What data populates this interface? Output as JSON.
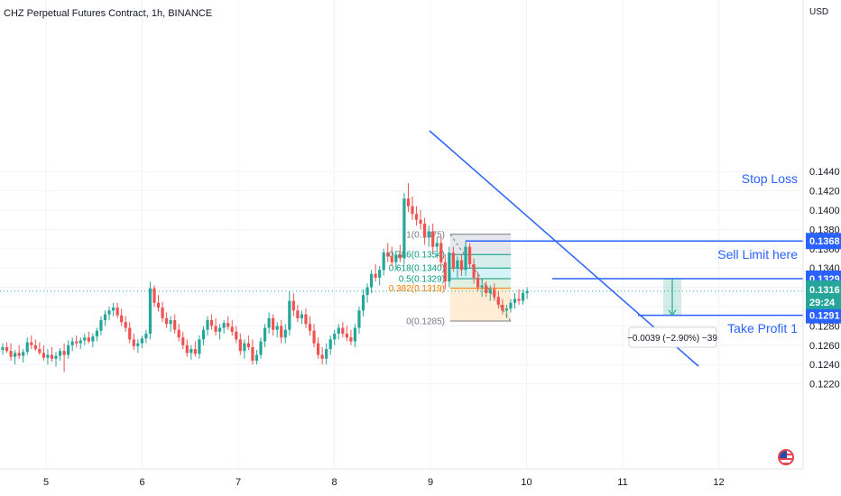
{
  "header": {
    "title": "CHZ Perpetual Futures Contract, 1h, BINANCE",
    "currency": "USD"
  },
  "colors": {
    "up": "#26a69a",
    "down": "#ef5350",
    "drawing": "#2962ff",
    "target": "#089981"
  },
  "chart_data": {
    "type": "candlestick",
    "x_tick_labels": [
      "5",
      "6",
      "7",
      "8",
      "9",
      "10",
      "11",
      "12"
    ],
    "y_tick_labels": [
      "0.1440",
      "0.1420",
      "0.1400",
      "0.1380",
      "0.1360",
      "0.1340",
      "0.1320",
      "0.1300",
      "0.1280",
      "0.1260",
      "0.1240",
      "0.1220"
    ],
    "ylim": [
      0.1212,
      0.144
    ],
    "current_price": "0.1316",
    "countdown": "29:24",
    "candles": [
      {
        "o": 0.1255,
        "h": 0.1262,
        "l": 0.125,
        "c": 0.1258
      },
      {
        "o": 0.1258,
        "h": 0.1263,
        "l": 0.1252,
        "c": 0.1254
      },
      {
        "o": 0.1254,
        "h": 0.1262,
        "l": 0.1244,
        "c": 0.1248
      },
      {
        "o": 0.1248,
        "h": 0.1255,
        "l": 0.124,
        "c": 0.1252
      },
      {
        "o": 0.1252,
        "h": 0.126,
        "l": 0.1246,
        "c": 0.1249
      },
      {
        "o": 0.1249,
        "h": 0.1256,
        "l": 0.1242,
        "c": 0.1253
      },
      {
        "o": 0.1253,
        "h": 0.1268,
        "l": 0.125,
        "c": 0.1263
      },
      {
        "o": 0.1263,
        "h": 0.127,
        "l": 0.1256,
        "c": 0.126
      },
      {
        "o": 0.126,
        "h": 0.1266,
        "l": 0.1254,
        "c": 0.1256
      },
      {
        "o": 0.1256,
        "h": 0.1263,
        "l": 0.125,
        "c": 0.1252
      },
      {
        "o": 0.1252,
        "h": 0.126,
        "l": 0.1244,
        "c": 0.1247
      },
      {
        "o": 0.1247,
        "h": 0.1256,
        "l": 0.124,
        "c": 0.125
      },
      {
        "o": 0.125,
        "h": 0.1258,
        "l": 0.1243,
        "c": 0.1246
      },
      {
        "o": 0.1246,
        "h": 0.1253,
        "l": 0.1238,
        "c": 0.1249
      },
      {
        "o": 0.1249,
        "h": 0.1257,
        "l": 0.1244,
        "c": 0.1254
      },
      {
        "o": 0.1254,
        "h": 0.1262,
        "l": 0.1232,
        "c": 0.125
      },
      {
        "o": 0.125,
        "h": 0.1265,
        "l": 0.1246,
        "c": 0.126
      },
      {
        "o": 0.126,
        "h": 0.1268,
        "l": 0.1254,
        "c": 0.1264
      },
      {
        "o": 0.1264,
        "h": 0.127,
        "l": 0.1258,
        "c": 0.1262
      },
      {
        "o": 0.1262,
        "h": 0.1268,
        "l": 0.1256,
        "c": 0.1265
      },
      {
        "o": 0.1265,
        "h": 0.1272,
        "l": 0.126,
        "c": 0.1268
      },
      {
        "o": 0.1268,
        "h": 0.1274,
        "l": 0.1262,
        "c": 0.1264
      },
      {
        "o": 0.1264,
        "h": 0.1272,
        "l": 0.1258,
        "c": 0.1269
      },
      {
        "o": 0.1269,
        "h": 0.1278,
        "l": 0.1264,
        "c": 0.1275
      },
      {
        "o": 0.1275,
        "h": 0.129,
        "l": 0.127,
        "c": 0.1286
      },
      {
        "o": 0.1286,
        "h": 0.1296,
        "l": 0.128,
        "c": 0.1292
      },
      {
        "o": 0.1292,
        "h": 0.13,
        "l": 0.1286,
        "c": 0.1296
      },
      {
        "o": 0.1296,
        "h": 0.1304,
        "l": 0.129,
        "c": 0.1299
      },
      {
        "o": 0.1299,
        "h": 0.1304,
        "l": 0.1288,
        "c": 0.1291
      },
      {
        "o": 0.1291,
        "h": 0.1298,
        "l": 0.128,
        "c": 0.1284
      },
      {
        "o": 0.1284,
        "h": 0.129,
        "l": 0.1274,
        "c": 0.1278
      },
      {
        "o": 0.1278,
        "h": 0.1284,
        "l": 0.1262,
        "c": 0.1266
      },
      {
        "o": 0.1266,
        "h": 0.1272,
        "l": 0.1255,
        "c": 0.1259
      },
      {
        "o": 0.1259,
        "h": 0.1266,
        "l": 0.1252,
        "c": 0.1262
      },
      {
        "o": 0.1262,
        "h": 0.127,
        "l": 0.1257,
        "c": 0.1267
      },
      {
        "o": 0.1267,
        "h": 0.1276,
        "l": 0.1262,
        "c": 0.1272
      },
      {
        "o": 0.1272,
        "h": 0.1326,
        "l": 0.1266,
        "c": 0.1319
      },
      {
        "o": 0.1319,
        "h": 0.1322,
        "l": 0.13,
        "c": 0.1304
      },
      {
        "o": 0.1304,
        "h": 0.1312,
        "l": 0.1295,
        "c": 0.1299
      },
      {
        "o": 0.1299,
        "h": 0.1305,
        "l": 0.1284,
        "c": 0.1288
      },
      {
        "o": 0.1288,
        "h": 0.1294,
        "l": 0.1278,
        "c": 0.1282
      },
      {
        "o": 0.1282,
        "h": 0.129,
        "l": 0.1274,
        "c": 0.1286
      },
      {
        "o": 0.1286,
        "h": 0.1292,
        "l": 0.1272,
        "c": 0.1276
      },
      {
        "o": 0.1276,
        "h": 0.1282,
        "l": 0.1264,
        "c": 0.1268
      },
      {
        "o": 0.1268,
        "h": 0.1274,
        "l": 0.1256,
        "c": 0.126
      },
      {
        "o": 0.126,
        "h": 0.1266,
        "l": 0.1248,
        "c": 0.1252
      },
      {
        "o": 0.1252,
        "h": 0.126,
        "l": 0.1245,
        "c": 0.1256
      },
      {
        "o": 0.1256,
        "h": 0.1264,
        "l": 0.1248,
        "c": 0.1251
      },
      {
        "o": 0.1251,
        "h": 0.127,
        "l": 0.1246,
        "c": 0.1266
      },
      {
        "o": 0.1266,
        "h": 0.128,
        "l": 0.126,
        "c": 0.1276
      },
      {
        "o": 0.1276,
        "h": 0.129,
        "l": 0.127,
        "c": 0.1286
      },
      {
        "o": 0.1286,
        "h": 0.1292,
        "l": 0.1276,
        "c": 0.128
      },
      {
        "o": 0.128,
        "h": 0.1288,
        "l": 0.127,
        "c": 0.1274
      },
      {
        "o": 0.1274,
        "h": 0.1282,
        "l": 0.1266,
        "c": 0.1278
      },
      {
        "o": 0.1278,
        "h": 0.1286,
        "l": 0.1272,
        "c": 0.1283
      },
      {
        "o": 0.1283,
        "h": 0.129,
        "l": 0.1276,
        "c": 0.1279
      },
      {
        "o": 0.1279,
        "h": 0.1286,
        "l": 0.127,
        "c": 0.1274
      },
      {
        "o": 0.1274,
        "h": 0.128,
        "l": 0.1262,
        "c": 0.1266
      },
      {
        "o": 0.1266,
        "h": 0.1272,
        "l": 0.125,
        "c": 0.1254
      },
      {
        "o": 0.1254,
        "h": 0.1266,
        "l": 0.1246,
        "c": 0.1262
      },
      {
        "o": 0.1262,
        "h": 0.127,
        "l": 0.1255,
        "c": 0.1258
      },
      {
        "o": 0.1258,
        "h": 0.1266,
        "l": 0.124,
        "c": 0.1244
      },
      {
        "o": 0.1244,
        "h": 0.1255,
        "l": 0.124,
        "c": 0.125
      },
      {
        "o": 0.125,
        "h": 0.1268,
        "l": 0.1246,
        "c": 0.1264
      },
      {
        "o": 0.1264,
        "h": 0.1282,
        "l": 0.1258,
        "c": 0.1278
      },
      {
        "o": 0.1278,
        "h": 0.1294,
        "l": 0.1272,
        "c": 0.1288
      },
      {
        "o": 0.1288,
        "h": 0.1292,
        "l": 0.127,
        "c": 0.1276
      },
      {
        "o": 0.1276,
        "h": 0.1284,
        "l": 0.1268,
        "c": 0.128
      },
      {
        "o": 0.128,
        "h": 0.1286,
        "l": 0.1262,
        "c": 0.1268
      },
      {
        "o": 0.1268,
        "h": 0.1282,
        "l": 0.1262,
        "c": 0.1276
      },
      {
        "o": 0.1276,
        "h": 0.1316,
        "l": 0.127,
        "c": 0.1306
      },
      {
        "o": 0.1306,
        "h": 0.1314,
        "l": 0.129,
        "c": 0.1296
      },
      {
        "o": 0.1296,
        "h": 0.1302,
        "l": 0.1284,
        "c": 0.1288
      },
      {
        "o": 0.1288,
        "h": 0.1296,
        "l": 0.1282,
        "c": 0.1292
      },
      {
        "o": 0.1292,
        "h": 0.1298,
        "l": 0.1278,
        "c": 0.1282
      },
      {
        "o": 0.1282,
        "h": 0.129,
        "l": 0.127,
        "c": 0.1275
      },
      {
        "o": 0.1275,
        "h": 0.1282,
        "l": 0.1258,
        "c": 0.1262
      },
      {
        "o": 0.1262,
        "h": 0.1268,
        "l": 0.1246,
        "c": 0.125
      },
      {
        "o": 0.125,
        "h": 0.1258,
        "l": 0.124,
        "c": 0.1246
      },
      {
        "o": 0.1246,
        "h": 0.1262,
        "l": 0.124,
        "c": 0.1256
      },
      {
        "o": 0.1256,
        "h": 0.127,
        "l": 0.125,
        "c": 0.1266
      },
      {
        "o": 0.1266,
        "h": 0.1276,
        "l": 0.126,
        "c": 0.1272
      },
      {
        "o": 0.1272,
        "h": 0.1282,
        "l": 0.1266,
        "c": 0.1278
      },
      {
        "o": 0.1278,
        "h": 0.1284,
        "l": 0.1268,
        "c": 0.1272
      },
      {
        "o": 0.1272,
        "h": 0.128,
        "l": 0.1264,
        "c": 0.1268
      },
      {
        "o": 0.1268,
        "h": 0.1276,
        "l": 0.126,
        "c": 0.1264
      },
      {
        "o": 0.1264,
        "h": 0.1282,
        "l": 0.1258,
        "c": 0.1278
      },
      {
        "o": 0.1278,
        "h": 0.13,
        "l": 0.1272,
        "c": 0.1296
      },
      {
        "o": 0.1296,
        "h": 0.1318,
        "l": 0.129,
        "c": 0.1312
      },
      {
        "o": 0.1312,
        "h": 0.1324,
        "l": 0.1304,
        "c": 0.132
      },
      {
        "o": 0.132,
        "h": 0.1338,
        "l": 0.1314,
        "c": 0.1334
      },
      {
        "o": 0.1334,
        "h": 0.1344,
        "l": 0.1326,
        "c": 0.133
      },
      {
        "o": 0.133,
        "h": 0.1342,
        "l": 0.1322,
        "c": 0.1338
      },
      {
        "o": 0.1338,
        "h": 0.136,
        "l": 0.1332,
        "c": 0.1356
      },
      {
        "o": 0.1356,
        "h": 0.1366,
        "l": 0.1346,
        "c": 0.1352
      },
      {
        "o": 0.1352,
        "h": 0.1362,
        "l": 0.1342,
        "c": 0.1346
      },
      {
        "o": 0.1346,
        "h": 0.1358,
        "l": 0.1338,
        "c": 0.1354
      },
      {
        "o": 0.1354,
        "h": 0.1364,
        "l": 0.1346,
        "c": 0.135
      },
      {
        "o": 0.135,
        "h": 0.1418,
        "l": 0.1344,
        "c": 0.1412
      },
      {
        "o": 0.1412,
        "h": 0.1428,
        "l": 0.1398,
        "c": 0.1404
      },
      {
        "o": 0.1404,
        "h": 0.1414,
        "l": 0.139,
        "c": 0.1396
      },
      {
        "o": 0.1396,
        "h": 0.1404,
        "l": 0.1384,
        "c": 0.139
      },
      {
        "o": 0.139,
        "h": 0.14,
        "l": 0.138,
        "c": 0.1386
      },
      {
        "o": 0.1386,
        "h": 0.1392,
        "l": 0.1364,
        "c": 0.1372
      },
      {
        "o": 0.1372,
        "h": 0.1384,
        "l": 0.1362,
        "c": 0.1378
      },
      {
        "o": 0.1378,
        "h": 0.1386,
        "l": 0.1356,
        "c": 0.1362
      },
      {
        "o": 0.1362,
        "h": 0.1372,
        "l": 0.135,
        "c": 0.1366
      },
      {
        "o": 0.1366,
        "h": 0.1372,
        "l": 0.134,
        "c": 0.1346
      },
      {
        "o": 0.1346,
        "h": 0.1354,
        "l": 0.1318,
        "c": 0.1326
      },
      {
        "o": 0.1326,
        "h": 0.1362,
        "l": 0.132,
        "c": 0.1356
      },
      {
        "o": 0.1356,
        "h": 0.1362,
        "l": 0.1336,
        "c": 0.134
      },
      {
        "o": 0.134,
        "h": 0.1352,
        "l": 0.133,
        "c": 0.1348
      },
      {
        "o": 0.1348,
        "h": 0.1354,
        "l": 0.1332,
        "c": 0.1338
      },
      {
        "o": 0.1338,
        "h": 0.1368,
        "l": 0.1332,
        "c": 0.1362
      },
      {
        "o": 0.1362,
        "h": 0.1366,
        "l": 0.134,
        "c": 0.1344
      },
      {
        "o": 0.1344,
        "h": 0.135,
        "l": 0.1324,
        "c": 0.133
      },
      {
        "o": 0.133,
        "h": 0.1336,
        "l": 0.1316,
        "c": 0.132
      },
      {
        "o": 0.132,
        "h": 0.1328,
        "l": 0.131,
        "c": 0.1322
      },
      {
        "o": 0.1322,
        "h": 0.1326,
        "l": 0.131,
        "c": 0.1314
      },
      {
        "o": 0.1314,
        "h": 0.1322,
        "l": 0.1306,
        "c": 0.1318
      },
      {
        "o": 0.1318,
        "h": 0.1324,
        "l": 0.1306,
        "c": 0.131
      },
      {
        "o": 0.131,
        "h": 0.1316,
        "l": 0.1298,
        "c": 0.1302
      },
      {
        "o": 0.1302,
        "h": 0.1308,
        "l": 0.1292,
        "c": 0.1296
      },
      {
        "o": 0.1296,
        "h": 0.1302,
        "l": 0.1288,
        "c": 0.1298
      },
      {
        "o": 0.1298,
        "h": 0.1308,
        "l": 0.1294,
        "c": 0.1304
      },
      {
        "o": 0.1304,
        "h": 0.1314,
        "l": 0.1298,
        "c": 0.1308
      },
      {
        "o": 0.1308,
        "h": 0.1318,
        "l": 0.1302,
        "c": 0.1306
      },
      {
        "o": 0.1306,
        "h": 0.1318,
        "l": 0.1302,
        "c": 0.1314
      },
      {
        "o": 0.1314,
        "h": 0.132,
        "l": 0.1308,
        "c": 0.1316
      }
    ],
    "fibonacci": [
      {
        "label": "1(0.1375)",
        "value": 0.1375,
        "color": "#787b86"
      },
      {
        "label": "0.786(0.1354)",
        "value": 0.1354,
        "color": "#089981"
      },
      {
        "label": "0.618(0.1340)",
        "value": 0.134,
        "color": "#089981"
      },
      {
        "label": "0.5(0.1329)",
        "value": 0.1329,
        "color": "#089981"
      },
      {
        "label": "0.382(0.1319)",
        "value": 0.1319,
        "color": "#f57c00"
      },
      {
        "label": "0(0.1285)",
        "value": 0.1285,
        "color": "#787b86"
      }
    ],
    "levels": [
      {
        "label": "Stop Loss",
        "price": "0.1368",
        "value": 0.1368
      },
      {
        "label": "Sell Limit here",
        "price": "0.1329",
        "value": 0.1329
      },
      {
        "label": "Take Profit 1",
        "price": "0.1291",
        "value": 0.1291
      }
    ],
    "measure": {
      "label": "−0.0039 (−2.90%) −39",
      "from": 0.1329,
      "to": 0.1291
    }
  }
}
